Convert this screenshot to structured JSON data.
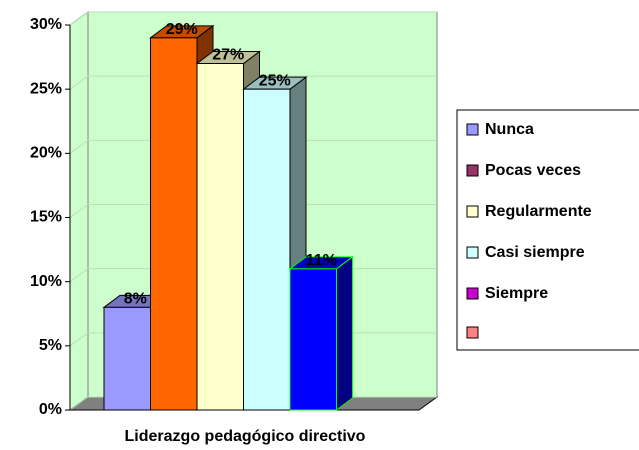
{
  "chart_data": {
    "type": "bar3d",
    "x_label": "Liderazgo pedagógico directivo",
    "categories": [
      "Liderazgo pedagógico directivo"
    ],
    "series": [
      {
        "name": "Nunca",
        "color": "#9999ff",
        "legend_color": "#9999ff",
        "values": [
          8
        ],
        "value_labels": [
          "8%"
        ]
      },
      {
        "name": "Pocas veces",
        "color": "#ff6600",
        "legend_color": "#993366",
        "values": [
          29
        ],
        "value_labels": [
          "29%"
        ]
      },
      {
        "name": "Regularmente",
        "color": "#ffffcc",
        "legend_color": "#ffffcc",
        "values": [
          27
        ],
        "value_labels": [
          "27%"
        ]
      },
      {
        "name": "Casi siempre",
        "color": "#ccffff",
        "legend_color": "#ccffff",
        "values": [
          25
        ],
        "value_labels": [
          "25%"
        ]
      },
      {
        "name": "Siempre",
        "color": "#0000ff",
        "edge_color": "#00ff00",
        "legend_color": "#cc00cc",
        "values": [
          11
        ],
        "value_labels": [
          "11%"
        ]
      }
    ],
    "ylim": [
      0,
      30
    ],
    "yticks": [
      {
        "value": 0,
        "label": "0%"
      },
      {
        "value": 5,
        "label": "5%"
      },
      {
        "value": 10,
        "label": "10%"
      },
      {
        "value": 15,
        "label": "15%"
      },
      {
        "value": 20,
        "label": "20%"
      },
      {
        "value": 25,
        "label": "25%"
      },
      {
        "value": 30,
        "label": "30%"
      }
    ],
    "grid": true,
    "legend": "right"
  }
}
